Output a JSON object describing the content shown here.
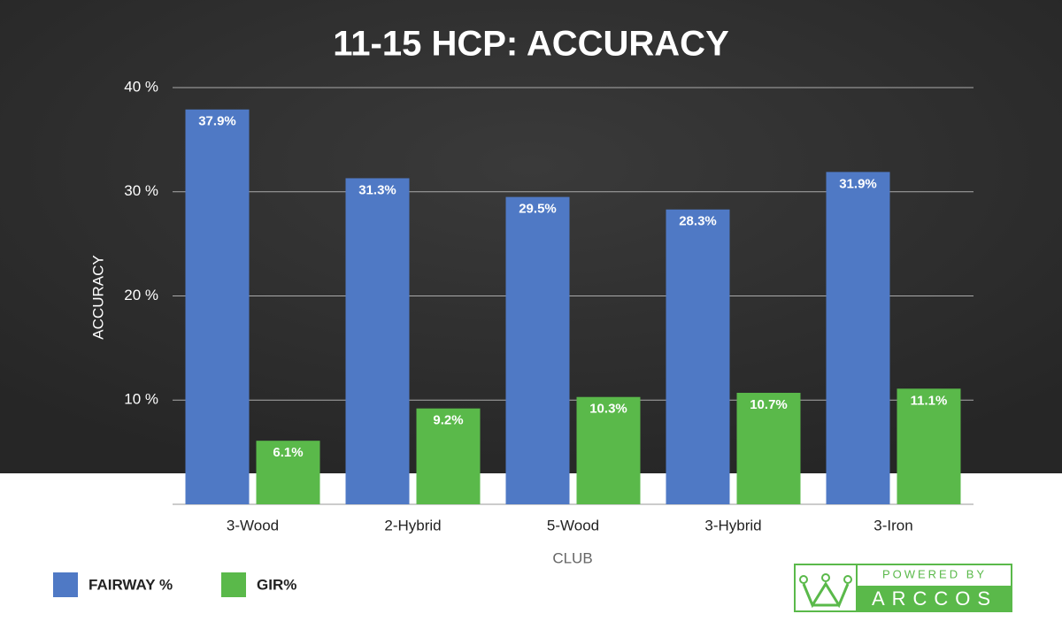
{
  "chart_data": {
    "type": "bar",
    "title": "11-15 HCP: ACCURACY",
    "x_label": "CLUB",
    "y_label": "ACCURACY",
    "categories": [
      "3-Wood",
      "2-Hybrid",
      "5-Wood",
      "3-Hybrid",
      "3-Iron"
    ],
    "series": [
      {
        "name": "FAIRWAY %",
        "color": "#4f79c5",
        "values": [
          37.9,
          31.3,
          29.5,
          28.3,
          31.9
        ],
        "value_labels": [
          "37.9%",
          "31.3%",
          "29.5%",
          "28.3%",
          "31.9%"
        ]
      },
      {
        "name": "GIR%",
        "color": "#5ab94a",
        "values": [
          6.1,
          9.2,
          10.3,
          10.7,
          11.1
        ],
        "value_labels": [
          "6.1%",
          "9.2%",
          "10.3%",
          "10.7%",
          "11.1%"
        ]
      }
    ],
    "ylim": [
      0,
      40
    ],
    "yticks": [
      {
        "value": 10,
        "label": "10 %"
      },
      {
        "value": 20,
        "label": "20 %"
      },
      {
        "value": 30,
        "label": "30 %"
      },
      {
        "value": 40,
        "label": "40 %"
      }
    ],
    "grid": true,
    "legend": "bottom-left"
  },
  "logo": {
    "top": "POWERED BY",
    "bottom": "ARCCOS"
  }
}
